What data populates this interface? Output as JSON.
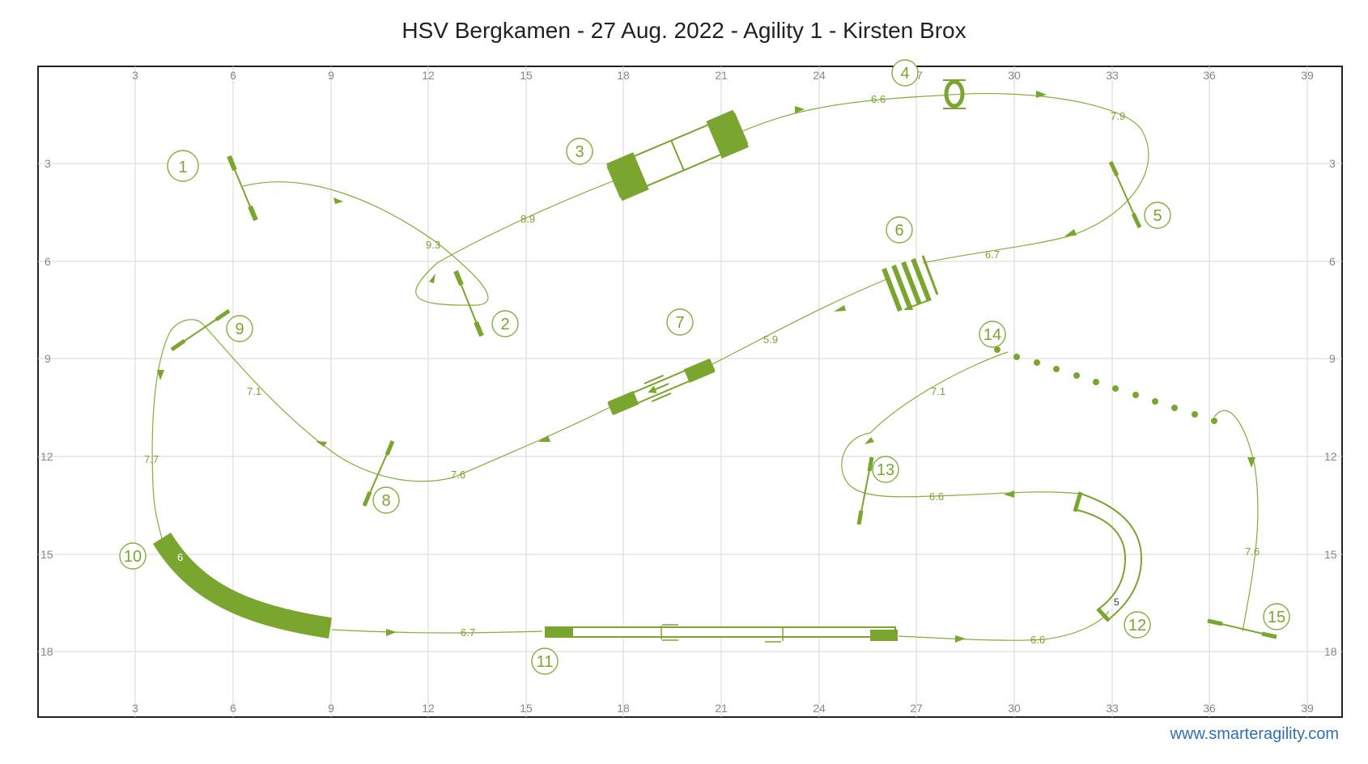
{
  "title": "HSV Bergkamen - 27 Aug. 2022 - Agility 1 - Kirsten Brox",
  "footer": "www.smarteragility.com",
  "colors": {
    "accent": "#7aa52e",
    "grid": "#d7d7d7",
    "frame": "#222222",
    "link": "#2f6fb5"
  },
  "axes": {
    "x_ticks": [
      "3",
      "6",
      "9",
      "12",
      "15",
      "18",
      "21",
      "24",
      "27",
      "30",
      "33",
      "36",
      "39"
    ],
    "y_ticks": [
      "3",
      "6",
      "9",
      "12",
      "15",
      "18"
    ]
  },
  "obstacles": [
    {
      "number": "1",
      "type": "jump"
    },
    {
      "number": "2",
      "type": "jump"
    },
    {
      "number": "3",
      "type": "dogwalk-contact"
    },
    {
      "number": "4",
      "type": "tyre"
    },
    {
      "number": "5",
      "type": "jump"
    },
    {
      "number": "6",
      "type": "jump-spread"
    },
    {
      "number": "7",
      "type": "seesaw"
    },
    {
      "number": "8",
      "type": "jump"
    },
    {
      "number": "9",
      "type": "jump"
    },
    {
      "number": "10",
      "type": "tunnel",
      "label": "6"
    },
    {
      "number": "11",
      "type": "dogwalk"
    },
    {
      "number": "12",
      "type": "tunnel",
      "label": "5"
    },
    {
      "number": "13",
      "type": "jump"
    },
    {
      "number": "14",
      "type": "weave-poles"
    },
    {
      "number": "15",
      "type": "jump"
    }
  ],
  "distances": [
    "9.3",
    "8.9",
    "6.6",
    "7.9",
    "6.7",
    "5.9",
    "7.6",
    "7.1",
    "7.7",
    "6.7",
    "6.6",
    "6.6",
    "7.1",
    "7.6"
  ]
}
